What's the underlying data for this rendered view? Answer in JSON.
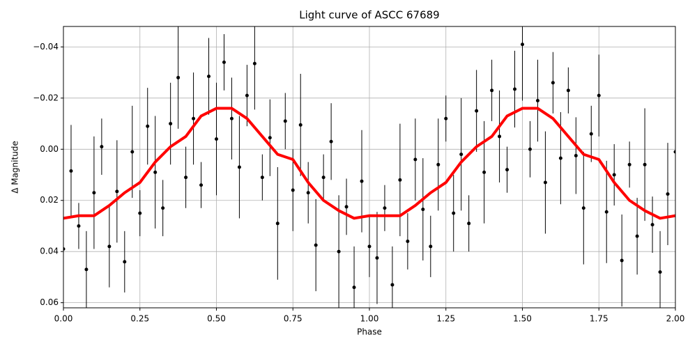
{
  "chart_data": {
    "type": "errorbar_scatter_with_curve",
    "title": "Light curve of ASCC 67689",
    "xlabel": "Phase",
    "ylabel": "Δ Magnitude",
    "xlim": [
      0,
      2
    ],
    "ylim": [
      0.062,
      -0.048
    ],
    "xticks": [
      {
        "value": 0,
        "label": "0.00"
      },
      {
        "value": 0.25,
        "label": "0.25"
      },
      {
        "value": 0.5,
        "label": "0.50"
      },
      {
        "value": 0.75,
        "label": "0.75"
      },
      {
        "value": 1,
        "label": "1.00"
      },
      {
        "value": 1.25,
        "label": "1.25"
      },
      {
        "value": 1.5,
        "label": "1.50"
      },
      {
        "value": 1.75,
        "label": "1.75"
      },
      {
        "value": 2,
        "label": "2.00"
      }
    ],
    "yticks": [
      {
        "value": -0.04,
        "label": "−0.04"
      },
      {
        "value": -0.02,
        "label": "−0.02"
      },
      {
        "value": 0,
        "label": "0.00"
      },
      0.02,
      0.04,
      0.06
    ],
    "grid": true,
    "points": {
      "color": "#000000",
      "x": [
        0,
        0.025,
        0.05,
        0.075,
        0.1,
        0.125,
        0.15,
        0.175,
        0.2,
        0.225,
        0.25,
        0.275,
        0.3,
        0.325,
        0.35,
        0.375,
        0.4,
        0.425,
        0.45,
        0.475,
        0.5,
        0.525,
        0.55,
        0.575,
        0.6,
        0.625,
        0.65,
        0.675,
        0.7,
        0.725,
        0.75,
        0.775,
        0.8,
        0.825,
        0.85,
        0.875,
        0.9,
        0.925,
        0.95,
        0.975,
        1,
        1.025,
        1.05,
        1.075,
        1.1,
        1.125,
        1.15,
        1.175,
        1.2,
        1.225,
        1.25,
        1.275,
        1.3,
        1.325,
        1.35,
        1.375,
        1.4,
        1.425,
        1.45,
        1.475,
        1.5,
        1.525,
        1.55,
        1.575,
        1.6,
        1.625,
        1.65,
        1.675,
        1.7,
        1.725,
        1.75,
        1.775,
        1.8,
        1.825,
        1.85,
        1.875,
        1.9,
        1.925,
        1.95,
        1.975,
        2
      ],
      "y": [
        0.039,
        0.0085,
        0.03,
        0.047,
        0.017,
        -0.001,
        0.038,
        0.0165,
        0.044,
        0.001,
        0.025,
        -0.009,
        0.009,
        0.023,
        -0.01,
        -0.028,
        0.011,
        -0.012,
        0.014,
        -0.0285,
        -0.004,
        -0.034,
        -0.012,
        0.007,
        -0.021,
        -0.0335,
        0.011,
        -0.0045,
        0.029,
        -0.011,
        0.016,
        -0.0095,
        0.017,
        0.0375,
        0.011,
        -0.003,
        0.04,
        0.0225,
        0.054,
        0.0125,
        0.038,
        0.0425,
        0.023,
        0.053,
        0.012,
        0.036,
        0.004,
        0.0235,
        0.038,
        0.006,
        -0.012,
        0.025,
        0.002,
        0.029,
        -0.015,
        0.009,
        -0.023,
        -0.005,
        0.008,
        -0.0235,
        -0.041,
        0,
        -0.019,
        0.013,
        -0.026,
        0.0035,
        -0.023,
        0.0025,
        0.023,
        -0.006,
        -0.021,
        0.0245,
        0.01,
        0.0435,
        0.006,
        0.034,
        0.006,
        0.0295,
        0.048,
        0.0175,
        0.001
      ],
      "yerr": [
        0.012,
        0.018,
        0.009,
        0.015,
        0.022,
        0.011,
        0.016,
        0.02,
        0.012,
        0.018,
        0.009,
        0.015,
        0.022,
        0.011,
        0.016,
        0.02,
        0.012,
        0.018,
        0.009,
        0.015,
        0.022,
        0.011,
        0.016,
        0.02,
        0.012,
        0.018,
        0.009,
        0.015,
        0.022,
        0.011,
        0.016,
        0.02,
        0.012,
        0.018,
        0.009,
        0.015,
        0.022,
        0.011,
        0.016,
        0.02,
        0.012,
        0.018,
        0.009,
        0.015,
        0.022,
        0.011,
        0.016,
        0.02,
        0.012,
        0.018,
        0.009,
        0.015,
        0.022,
        0.011,
        0.016,
        0.02,
        0.012,
        0.018,
        0.009,
        0.015,
        0.022,
        0.011,
        0.016,
        0.02,
        0.012,
        0.018,
        0.009,
        0.015,
        0.022,
        0.011,
        0.016,
        0.02,
        0.012,
        0.018,
        0.009,
        0.015,
        0.022,
        0.011,
        0.016,
        0.02,
        0.012
      ]
    },
    "curve": {
      "color": "#ff0000",
      "x": [
        0,
        0.05,
        0.1,
        0.15,
        0.2,
        0.25,
        0.3,
        0.35,
        0.4,
        0.45,
        0.5,
        0.55,
        0.6,
        0.65,
        0.7,
        0.75,
        0.8,
        0.85,
        0.9,
        0.95,
        1,
        1.05,
        1.1,
        1.15,
        1.2,
        1.25,
        1.3,
        1.35,
        1.4,
        1.45,
        1.5,
        1.55,
        1.6,
        1.65,
        1.7,
        1.75,
        1.8,
        1.85,
        1.9,
        1.95,
        2
      ],
      "y": [
        0.027,
        0.026,
        0.026,
        0.022,
        0.017,
        0.013,
        0.005,
        -0.001,
        -0.005,
        -0.013,
        -0.016,
        -0.016,
        -0.012,
        -0.005,
        0.002,
        0.004,
        0.013,
        0.02,
        0.024,
        0.027,
        0.026,
        0.026,
        0.026,
        0.022,
        0.017,
        0.013,
        0.005,
        -0.001,
        -0.005,
        -0.013,
        -0.016,
        -0.016,
        -0.012,
        -0.005,
        0.002,
        0.004,
        0.013,
        0.02,
        0.024,
        0.027,
        0.026
      ]
    }
  }
}
